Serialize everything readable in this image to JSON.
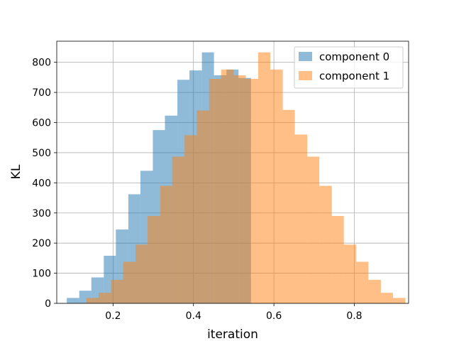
{
  "chart_data": {
    "type": "histogram",
    "title": "",
    "xlabel": "iteration",
    "ylabel": "KL",
    "xlim": [
      0.06,
      0.935
    ],
    "ylim": [
      0,
      870
    ],
    "xticks": [
      0.2,
      0.4,
      0.6,
      0.8
    ],
    "xtick_labels": [
      "0.2",
      "0.4",
      "0.6",
      "0.8"
    ],
    "yticks": [
      0,
      100,
      200,
      300,
      400,
      500,
      600,
      700,
      800
    ],
    "ytick_labels": [
      "0",
      "100",
      "200",
      "300",
      "400",
      "500",
      "600",
      "700",
      "800"
    ],
    "grid": true,
    "legend_position": "top-right",
    "series": [
      {
        "name": "component 0",
        "color": "#1f77b4",
        "alpha": 0.5,
        "bin_edges": [
          0.085,
          0.116,
          0.146,
          0.177,
          0.207,
          0.238,
          0.268,
          0.299,
          0.329,
          0.36,
          0.39,
          0.421,
          0.451,
          0.482,
          0.512,
          0.543
        ],
        "counts": [
          18,
          42,
          86,
          158,
          245,
          362,
          440,
          575,
          623,
          742,
          773,
          833,
          757,
          776,
          748
        ]
      },
      {
        "name": "component 1",
        "color": "#ff7f0e",
        "alpha": 0.5,
        "bin_edges": [
          0.134,
          0.164,
          0.195,
          0.225,
          0.256,
          0.286,
          0.317,
          0.347,
          0.378,
          0.408,
          0.439,
          0.469,
          0.5,
          0.53,
          0.561,
          0.591,
          0.622,
          0.652,
          0.683,
          0.713,
          0.744,
          0.774,
          0.805,
          0.835,
          0.866,
          0.896,
          0.927
        ],
        "counts": [
          18,
          35,
          78,
          138,
          195,
          290,
          390,
          487,
          558,
          640,
          745,
          776,
          757,
          745,
          833,
          776,
          642,
          560,
          487,
          390,
          290,
          195,
          138,
          78,
          35,
          18
        ]
      }
    ]
  }
}
